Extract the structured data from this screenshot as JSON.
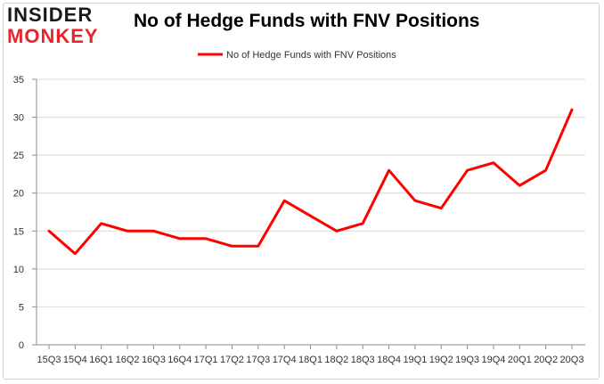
{
  "logo": {
    "line1": "INSIDER",
    "line2": "MONKEY"
  },
  "chart_data": {
    "type": "line",
    "title": "No of Hedge Funds with FNV Positions",
    "categories": [
      "15Q3",
      "15Q4",
      "16Q1",
      "16Q2",
      "16Q3",
      "16Q4",
      "17Q1",
      "17Q2",
      "17Q3",
      "17Q4",
      "18Q1",
      "18Q2",
      "18Q3",
      "18Q4",
      "19Q1",
      "19Q2",
      "19Q3",
      "19Q4",
      "20Q1",
      "20Q2",
      "20Q3"
    ],
    "series": [
      {
        "name": "No of Hedge Funds with FNV Positions",
        "values": [
          15,
          12,
          16,
          15,
          15,
          14,
          14,
          13,
          13,
          19,
          17,
          15,
          16,
          23,
          19,
          18,
          23,
          24,
          21,
          23,
          31
        ],
        "color": "#ff0000"
      }
    ],
    "ylim": [
      0,
      35
    ],
    "yticks": [
      0,
      5,
      10,
      15,
      20,
      25,
      30,
      35
    ],
    "xlabel": "",
    "ylabel": "",
    "grid": true,
    "legend_position": "top-center"
  }
}
